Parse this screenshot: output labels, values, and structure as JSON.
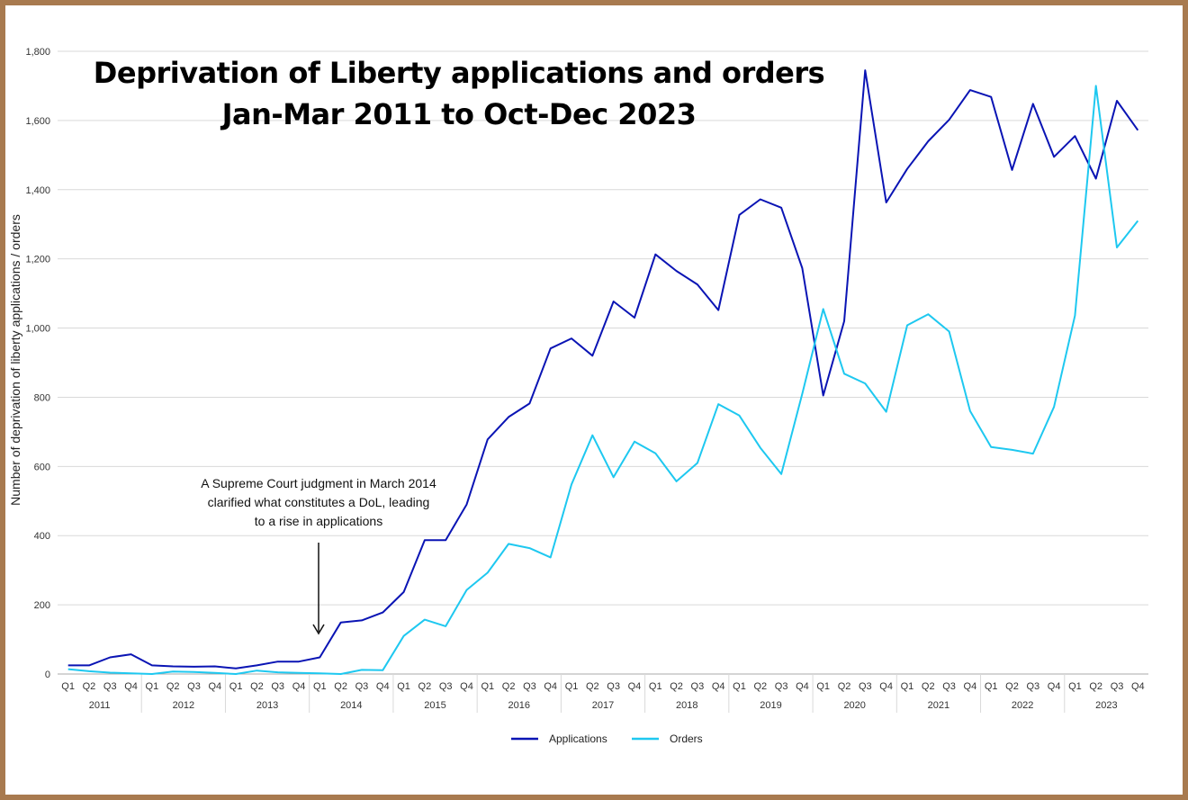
{
  "chart_data": {
    "type": "line",
    "title": "Deprivation of Liberty applications and orders",
    "subtitle": "Jan-Mar 2011 to Oct-Dec 2023",
    "ylabel": "Number of deprivation of liberty applications / orders",
    "xlabel": "",
    "ylim": [
      0,
      1800
    ],
    "yticks": [
      0,
      200,
      400,
      600,
      800,
      1000,
      1200,
      1400,
      1600,
      1800
    ],
    "ytick_labels": [
      "0",
      "200",
      "400",
      "600",
      "800",
      "1,000",
      "1,200",
      "1,400",
      "1,600",
      "1,800"
    ],
    "quarters": [
      "Q1",
      "Q2",
      "Q3",
      "Q4"
    ],
    "years": [
      "2011",
      "2012",
      "2013",
      "2014",
      "2015",
      "2016",
      "2017",
      "2018",
      "2019",
      "2020",
      "2021",
      "2022",
      "2023"
    ],
    "grid": true,
    "legend_position": "bottom",
    "series": [
      {
        "name": "Applications",
        "color": "#0a14b4",
        "values": [
          25,
          25,
          48,
          57,
          25,
          22,
          21,
          22,
          16,
          25,
          36,
          36,
          48,
          149,
          155,
          178,
          237,
          387,
          387,
          490,
          678,
          743,
          782,
          941,
          970,
          920,
          1077,
          1030,
          1213,
          1165,
          1126,
          1052,
          1327,
          1372,
          1348,
          1173,
          805,
          1020,
          1745,
          1363,
          1460,
          1540,
          1602,
          1688,
          1668,
          1457,
          1648,
          1495,
          1555,
          1432,
          1657,
          1572
        ]
      },
      {
        "name": "Orders",
        "color": "#1ec8f0",
        "values": [
          14,
          8,
          4,
          2,
          0,
          7,
          6,
          3,
          0,
          10,
          5,
          3,
          2,
          0,
          12,
          11,
          110,
          157,
          138,
          243,
          293,
          376,
          364,
          337,
          548,
          690,
          569,
          672,
          638,
          557,
          610,
          780,
          747,
          654,
          578,
          810,
          1055,
          868,
          840,
          758,
          1008,
          1040,
          990,
          760,
          656,
          648,
          637,
          772,
          1036,
          1700,
          1233,
          1310
        ]
      }
    ],
    "annotation": {
      "lines": [
        "A Supreme Court judgment in March 2014",
        "clarified what constitutes a DoL, leading",
        "to a rise in applications"
      ]
    }
  }
}
